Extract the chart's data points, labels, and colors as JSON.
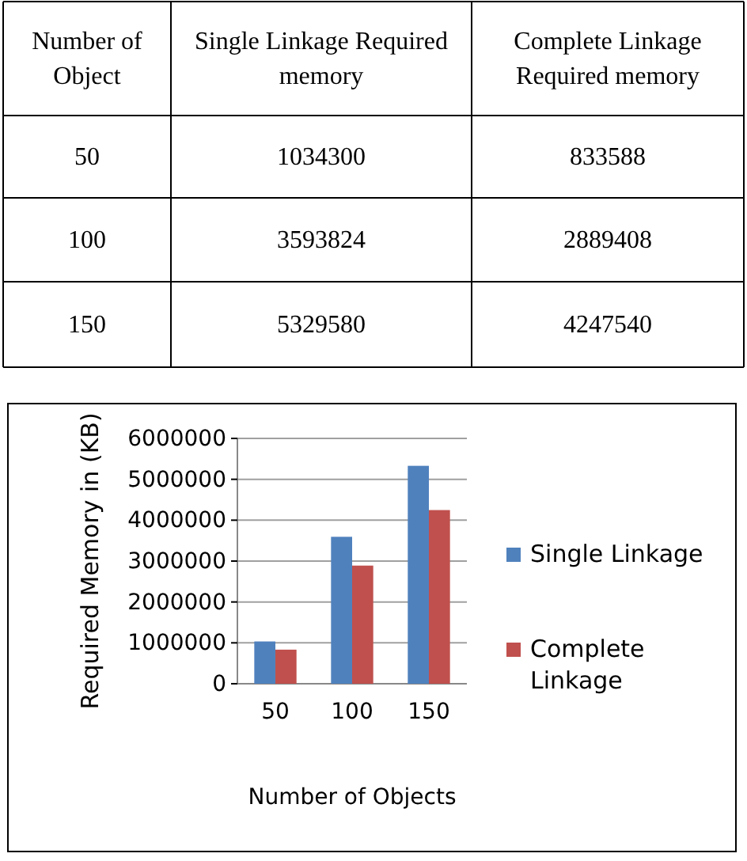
{
  "chart_data": [
    {
      "type": "other",
      "annotations": [
        "Number of Object",
        "Single Linkage Required memory",
        "Complete Linkage Required memory"
      ],
      "categories": [
        "50",
        "100",
        "150"
      ],
      "series": [
        {
          "values": [
            1034300,
            3593824,
            5329580
          ],
          "value_labels": [
            "1034300",
            "3593824",
            "5329580"
          ]
        },
        {
          "values": [
            833588,
            2889408,
            4247540
          ],
          "value_labels": [
            "833588",
            "2889408",
            "4247540"
          ]
        }
      ]
    },
    {
      "type": "bar",
      "xlabel": "Number of Objects",
      "ylabel": "Required Memory in (KB)",
      "categories": [
        "50",
        "100",
        "150"
      ],
      "series": [
        {
          "name": "Single Linkage",
          "color": "#4f81bd",
          "values": [
            1034300,
            3593824,
            5329580
          ]
        },
        {
          "name": "Complete Linkage",
          "color": "#c0504d",
          "values": [
            833588,
            2889408,
            4247540
          ]
        }
      ],
      "ylim": [
        0,
        6000000
      ],
      "yticks": [
        0,
        1000000,
        2000000,
        3000000,
        4000000,
        5000000,
        6000000
      ],
      "grid": "y",
      "legend": "right"
    }
  ]
}
